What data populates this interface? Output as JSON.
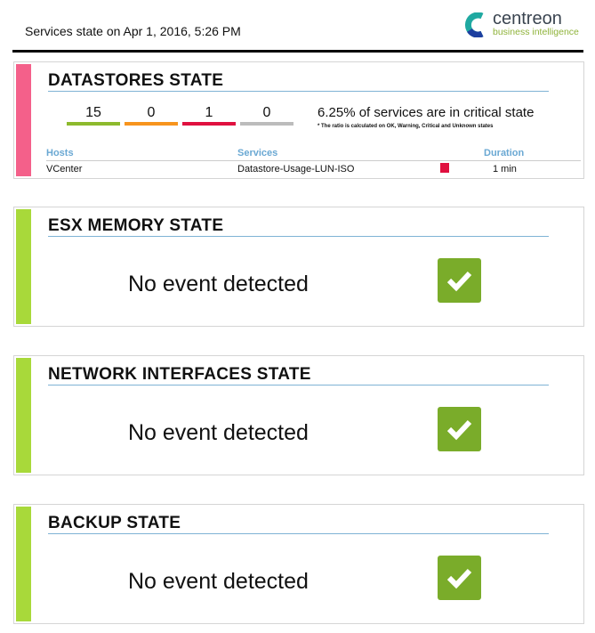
{
  "header": {
    "title": "Services state on  Apr 1, 2016, 5:26 PM"
  },
  "logo": {
    "name": "centreon",
    "tagline": "business intelligence"
  },
  "datastores": {
    "title": "DATASTORES STATE",
    "accent": "#f4608a",
    "counts": [
      {
        "value": "15",
        "color": "#8dba2d"
      },
      {
        "value": "0",
        "color": "#f7941d"
      },
      {
        "value": "1",
        "color": "#e0103f"
      },
      {
        "value": "0",
        "color": "#bcbcbc"
      }
    ],
    "ratio_text": "6.25% of services are in critical state",
    "ratio_note": "* The ratio is calculated on OK, Warning, Critical and Unknown states",
    "columns": [
      "Hosts",
      "Services",
      "Duration"
    ],
    "rows": [
      {
        "host": "VCenter",
        "service": "Datastore-Usage-LUN-ISO",
        "status_color": "#e0103f",
        "duration": "1 min"
      }
    ]
  },
  "sections": [
    {
      "title": "ESX MEMORY STATE",
      "message": "No event detected",
      "accent": "#a8d93a"
    },
    {
      "title": "NETWORK INTERFACES STATE",
      "message": "No event detected",
      "accent": "#a8d93a"
    },
    {
      "title": "BACKUP STATE",
      "message": "No event detected",
      "accent": "#a8d93a"
    }
  ]
}
